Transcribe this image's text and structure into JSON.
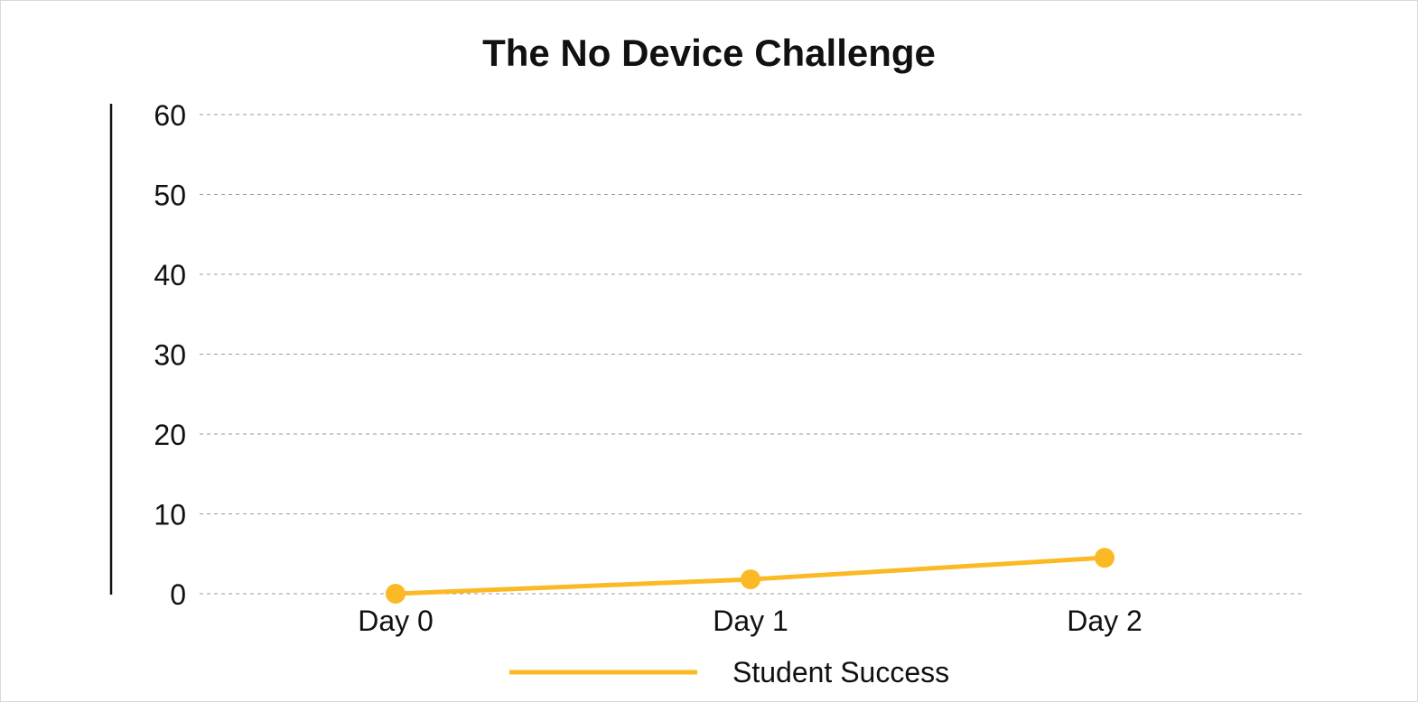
{
  "chart_data": {
    "type": "line",
    "title": "The No Device Challenge",
    "xlabel": "",
    "ylabel": "",
    "categories": [
      "Day 0",
      "Day 1",
      "Day 2"
    ],
    "y_ticks": [
      "0",
      "10",
      "20",
      "30",
      "40",
      "50",
      "60"
    ],
    "ylim": [
      0,
      60
    ],
    "grid": true,
    "legend_position": "bottom",
    "series": [
      {
        "name": "Student Success",
        "values": [
          0,
          1.8,
          4.5
        ],
        "color": "#FBBA25"
      }
    ]
  }
}
